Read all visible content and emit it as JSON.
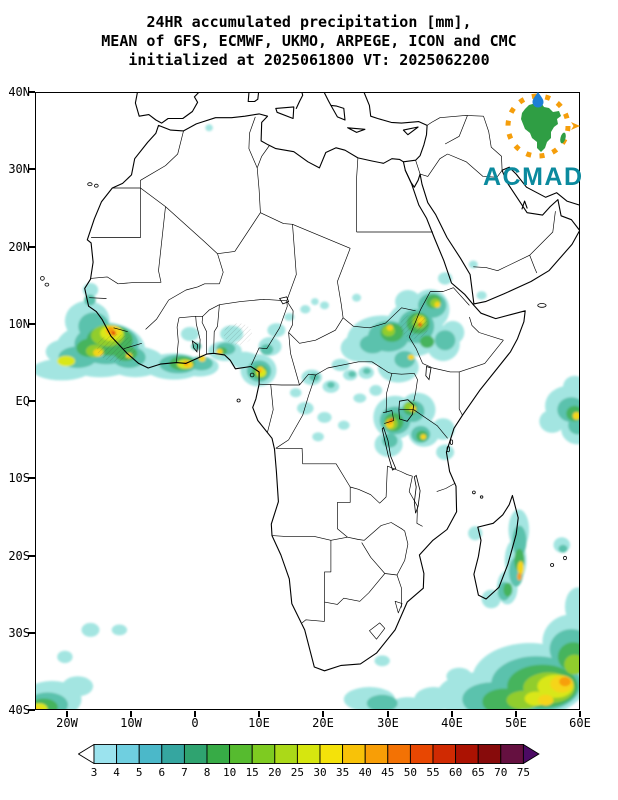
{
  "title": {
    "line1": "24HR accumulated precipitation [mm],",
    "line2": "MEAN of GFS, ECMWF, UKMO, ARPEGE, ICON and CMC",
    "line3": "initialized at 2025061800 VT: 2025062200"
  },
  "logo": {
    "name": "ACMAD"
  },
  "axes": {
    "lat": [
      "40N",
      "30N",
      "20N",
      "10N",
      "EQ",
      "10S",
      "20S",
      "30S",
      "40S"
    ],
    "lon": [
      "20W",
      "10W",
      "0",
      "10E",
      "20E",
      "30E",
      "40E",
      "50E",
      "60E"
    ]
  },
  "colorbar": {
    "labels": [
      "3",
      "4",
      "5",
      "6",
      "7",
      "8",
      "10",
      "15",
      "20",
      "25",
      "30",
      "35",
      "40",
      "45",
      "50",
      "55",
      "60",
      "65",
      "70",
      "75"
    ],
    "colors": [
      "#ffffff",
      "#9be3ee",
      "#6fcfe0",
      "#4bb8c9",
      "#35a6a0",
      "#2fa370",
      "#37ab46",
      "#56bb2f",
      "#7ecb21",
      "#abd918",
      "#d6e60f",
      "#f4e20a",
      "#f8c208",
      "#f89e06",
      "#f37204",
      "#e84702",
      "#d02a02",
      "#ab1202",
      "#870b0b",
      "#651040",
      "#4b0a63"
    ]
  }
}
